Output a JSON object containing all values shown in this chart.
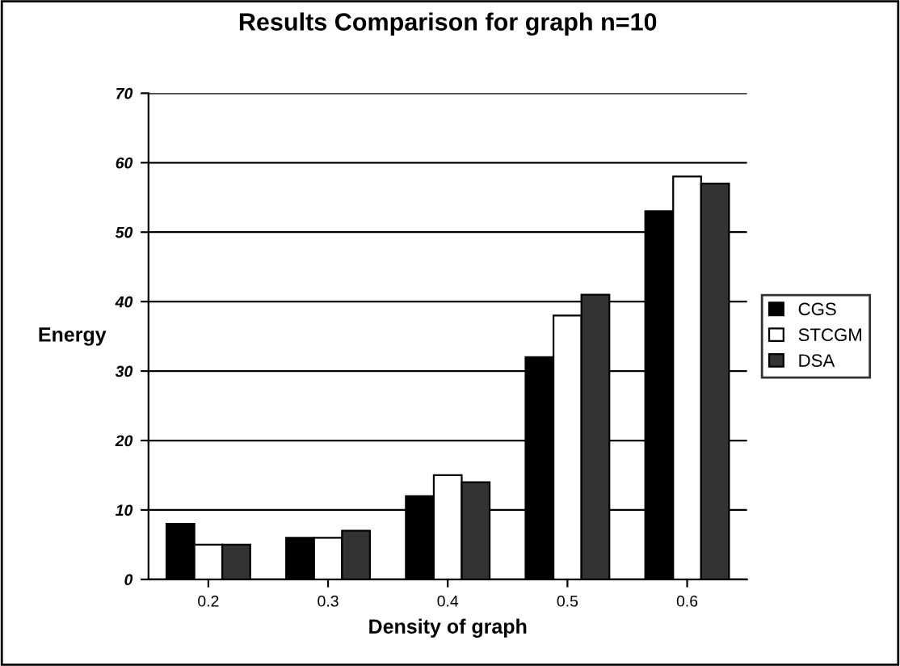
{
  "chart_data": {
    "type": "bar",
    "title": "Results Comparison for graph n=10",
    "xlabel": "Density of graph",
    "ylabel": "Energy",
    "categories": [
      "0.2",
      "0.3",
      "0.4",
      "0.5",
      "0.6"
    ],
    "series": [
      {
        "name": "CGS",
        "color": "#000000",
        "values": [
          8,
          6,
          12,
          32,
          53
        ]
      },
      {
        "name": "STCGM",
        "color": "#ffffff",
        "values": [
          5,
          6,
          15,
          38,
          58
        ]
      },
      {
        "name": "DSA",
        "color": "#333333",
        "values": [
          5,
          7,
          14,
          41,
          57
        ]
      }
    ],
    "ylim": [
      0,
      70
    ],
    "yticks": [
      0,
      10,
      20,
      30,
      40,
      50,
      60,
      70
    ],
    "grid": "y",
    "legend": "right"
  }
}
